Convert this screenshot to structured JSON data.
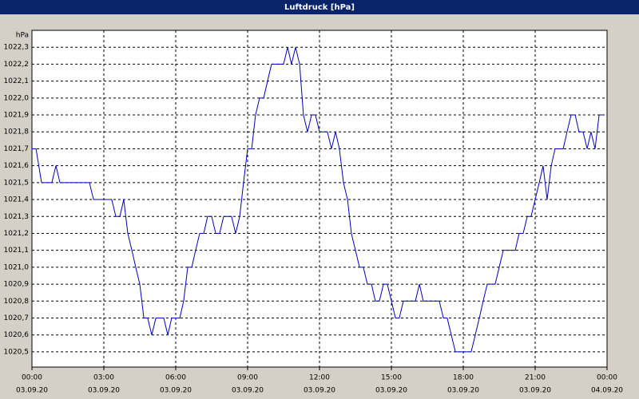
{
  "window_title": "Luftdruck [hPa]",
  "chart_data": {
    "type": "line",
    "y_unit": "hPa",
    "grid": true,
    "x": [
      0,
      0.17,
      0.4,
      0.83,
      1,
      1.17,
      2.4,
      2.57,
      3.33,
      3.5,
      3.67,
      3.83,
      4,
      4.17,
      4.33,
      4.5,
      4.67,
      4.83,
      5,
      5.17,
      5.5,
      5.67,
      5.83,
      6.17,
      6.33,
      6.5,
      6.67,
      6.83,
      7,
      7.17,
      7.33,
      7.5,
      7.67,
      7.83,
      8,
      8.33,
      8.5,
      8.67,
      8.83,
      9,
      9.17,
      9.33,
      9.5,
      9.67,
      9.83,
      10,
      10.5,
      10.67,
      10.83,
      11,
      11.17,
      11.33,
      11.5,
      11.67,
      11.83,
      12,
      12.33,
      12.5,
      12.67,
      12.83,
      13,
      13.17,
      13.33,
      13.5,
      13.67,
      13.83,
      14,
      14.17,
      14.33,
      14.5,
      14.67,
      14.83,
      15,
      15.17,
      15.33,
      15.5,
      16,
      16.17,
      16.33,
      17,
      17.17,
      17.33,
      17.5,
      17.67,
      18.33,
      18.5,
      18.67,
      18.83,
      19,
      19.33,
      19.5,
      19.67,
      20.17,
      20.33,
      20.5,
      20.67,
      20.83,
      21,
      21.17,
      21.33,
      21.5,
      21.67,
      21.83,
      22.17,
      22.33,
      22.5,
      22.67,
      22.83,
      23,
      23.17,
      23.33,
      23.5,
      23.67,
      23.83
    ],
    "series": [
      {
        "name": "Luftdruck",
        "color": "#0000c0",
        "values": [
          1021.7,
          1021.7,
          1021.5,
          1021.5,
          1021.6,
          1021.5,
          1021.5,
          1021.4,
          1021.4,
          1021.3,
          1021.3,
          1021.4,
          1021.2,
          1021.1,
          1021.0,
          1020.9,
          1020.7,
          1020.7,
          1020.6,
          1020.7,
          1020.7,
          1020.6,
          1020.7,
          1020.7,
          1020.8,
          1021.0,
          1021.0,
          1021.1,
          1021.2,
          1021.2,
          1021.3,
          1021.3,
          1021.2,
          1021.2,
          1021.3,
          1021.3,
          1021.2,
          1021.3,
          1021.5,
          1021.7,
          1021.7,
          1021.9,
          1022.0,
          1022.0,
          1022.1,
          1022.2,
          1022.2,
          1022.3,
          1022.2,
          1022.3,
          1022.2,
          1021.9,
          1021.8,
          1021.9,
          1021.9,
          1021.8,
          1021.8,
          1021.7,
          1021.8,
          1021.7,
          1021.5,
          1021.4,
          1021.2,
          1021.1,
          1021.0,
          1021.0,
          1020.9,
          1020.9,
          1020.8,
          1020.8,
          1020.9,
          1020.9,
          1020.8,
          1020.7,
          1020.7,
          1020.8,
          1020.8,
          1020.9,
          1020.8,
          1020.8,
          1020.7,
          1020.7,
          1020.6,
          1020.5,
          1020.5,
          1020.6,
          1020.7,
          1020.8,
          1020.9,
          1020.9,
          1021.0,
          1021.1,
          1021.1,
          1021.2,
          1021.2,
          1021.3,
          1021.3,
          1021.4,
          1021.5,
          1021.6,
          1021.4,
          1021.6,
          1021.7,
          1021.7,
          1021.8,
          1021.9,
          1021.9,
          1021.8,
          1021.8,
          1021.7,
          1021.8,
          1021.7,
          1021.9,
          1021.9
        ]
      }
    ],
    "xlim": [
      0,
      24
    ],
    "xticks": [
      {
        "value": 0,
        "label": "00:00"
      },
      {
        "value": 3,
        "label": "03:00"
      },
      {
        "value": 6,
        "label": "06:00"
      },
      {
        "value": 9,
        "label": "09:00"
      },
      {
        "value": 12,
        "label": "12:00"
      },
      {
        "value": 15,
        "label": "15:00"
      },
      {
        "value": 18,
        "label": "18:00"
      },
      {
        "value": 21,
        "label": "21:00"
      },
      {
        "value": 24,
        "label": "00:00"
      }
    ],
    "xtick_dates": [
      "03.09.20",
      "03.09.20",
      "03.09.20",
      "03.09.20",
      "03.09.20",
      "03.09.20",
      "03.09.20",
      "03.09.20",
      "04.09.20"
    ],
    "ylim": [
      1020.41,
      1022.4
    ],
    "yticks": [
      {
        "value": 1020.5,
        "label": "1020,5"
      },
      {
        "value": 1020.6,
        "label": "1020,6"
      },
      {
        "value": 1020.7,
        "label": "1020,7"
      },
      {
        "value": 1020.8,
        "label": "1020,8"
      },
      {
        "value": 1020.9,
        "label": "1020,9"
      },
      {
        "value": 1021.0,
        "label": "1021,0"
      },
      {
        "value": 1021.1,
        "label": "1021,1"
      },
      {
        "value": 1021.2,
        "label": "1021,2"
      },
      {
        "value": 1021.3,
        "label": "1021,3"
      },
      {
        "value": 1021.4,
        "label": "1021,4"
      },
      {
        "value": 1021.5,
        "label": "1021,5"
      },
      {
        "value": 1021.6,
        "label": "1021,6"
      },
      {
        "value": 1021.7,
        "label": "1021,7"
      },
      {
        "value": 1021.8,
        "label": "1021,8"
      },
      {
        "value": 1021.9,
        "label": "1021,9"
      },
      {
        "value": 1022.0,
        "label": "1022,0"
      },
      {
        "value": 1022.1,
        "label": "1022,1"
      },
      {
        "value": 1022.2,
        "label": "1022,2"
      },
      {
        "value": 1022.3,
        "label": "1022,3"
      }
    ]
  }
}
